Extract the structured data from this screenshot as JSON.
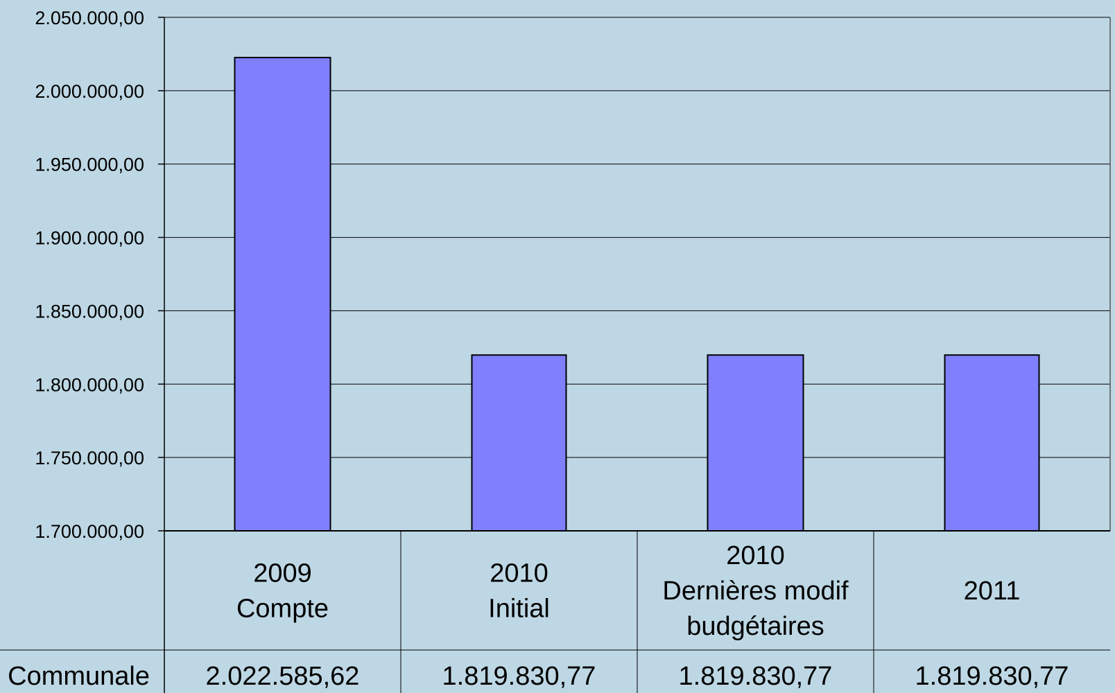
{
  "chart_data": {
    "type": "bar",
    "categories": [
      [
        "2009",
        "Compte"
      ],
      [
        "2010",
        "Initial"
      ],
      [
        "2010",
        "Dernières modif",
        "budgétaires"
      ],
      [
        "2011"
      ]
    ],
    "series": [
      {
        "name": "Communale",
        "values": [
          2022585.62,
          1819830.77,
          1819830.77,
          1819830.77
        ],
        "value_labels": [
          "2.022.585,62",
          "1.819.830,77",
          "1.819.830,77",
          "1.819.830,77"
        ]
      }
    ],
    "ylim": [
      1700000,
      2050000
    ],
    "yticks": [
      1700000,
      1750000,
      1800000,
      1850000,
      1900000,
      1950000,
      2000000,
      2050000
    ],
    "ytick_labels": [
      "1.700.000,00",
      "1.750.000,00",
      "1.800.000,00",
      "1.850.000,00",
      "1.900.000,00",
      "1.950.000,00",
      "2.000.000,00",
      "2.050.000,00"
    ],
    "grid": true,
    "data_table": true,
    "colors": {
      "background": "#bed7e4",
      "bar": "#8080ff",
      "bar_stroke": "#000000",
      "grid": "#000000"
    }
  }
}
